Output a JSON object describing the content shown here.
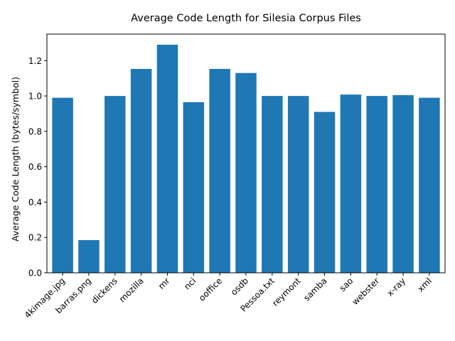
{
  "chart_data": {
    "type": "bar",
    "title": "Average Code Length for Silesia Corpus Files",
    "xlabel": "",
    "ylabel": "Average Code Length (bytes/symbol)",
    "categories": [
      "4kimage.jpg",
      "barras.png",
      "dickens",
      "mozilla",
      "mr",
      "nci",
      "ooffice",
      "osdb",
      "Pessoa.txt",
      "reymont",
      "samba",
      "sao",
      "webster",
      "x-ray",
      "xml"
    ],
    "values": [
      0.99,
      0.185,
      1.0,
      1.153,
      1.29,
      0.965,
      1.153,
      1.13,
      1.0,
      1.0,
      0.91,
      1.008,
      1.0,
      1.005,
      0.99
    ],
    "ylim": [
      0,
      1.35
    ],
    "yticks": [
      0.0,
      0.2,
      0.4,
      0.6,
      0.8,
      1.0,
      1.2
    ],
    "ytick_labels": [
      "0.0",
      "0.2",
      "0.4",
      "0.6",
      "0.8",
      "1.0",
      "1.2"
    ],
    "bar_color": "#1f77b4",
    "grid": false,
    "legend": "none"
  }
}
